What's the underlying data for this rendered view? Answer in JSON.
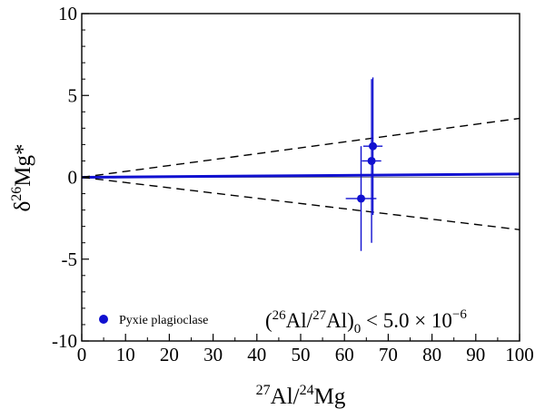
{
  "chart_data": {
    "type": "scatter",
    "title": "",
    "xlabel": {
      "sup": "27",
      "mid": "Al/",
      "sup2": "24",
      "end": "Mg"
    },
    "ylabel": {
      "pre": "δ",
      "sup": "26",
      "end": "Mg*"
    },
    "xlim": [
      0,
      100
    ],
    "ylim": [
      -10,
      10
    ],
    "x_ticks": [
      0,
      10,
      20,
      30,
      40,
      50,
      60,
      70,
      80,
      90,
      100
    ],
    "x_tick_labels": [
      "0",
      "10",
      "20",
      "30",
      "40",
      "50",
      "60",
      "70",
      "80",
      "90",
      "100"
    ],
    "y_ticks": [
      -10,
      -5,
      0,
      5,
      10
    ],
    "y_tick_labels": [
      "-10",
      "-5",
      "0",
      "5",
      "10"
    ],
    "grid": false,
    "legend_position": "bottom-left",
    "series": [
      {
        "name": "Pyxie plagioclase",
        "color": "#1010d0",
        "points": [
          {
            "x": 66.5,
            "y": 1.9,
            "xerr": 2.2,
            "yerr": 4.2
          },
          {
            "x": 66.2,
            "y": 1.0,
            "xerr": 2.2,
            "yerr": 5.0
          },
          {
            "x": 63.8,
            "y": -1.3,
            "xerr": 3.5,
            "yerr": 3.2
          }
        ]
      }
    ],
    "reference_lines": [
      {
        "kind": "horizontal",
        "y": 0,
        "color": "#888888"
      },
      {
        "kind": "fit",
        "x": [
          0,
          100
        ],
        "y": [
          0,
          0.2
        ],
        "color": "#1010d0"
      },
      {
        "kind": "envelope-upper",
        "x": [
          0,
          100
        ],
        "y": [
          0,
          3.6
        ],
        "dash": true,
        "color": "#000000"
      },
      {
        "kind": "envelope-lower",
        "x": [
          0,
          100
        ],
        "y": [
          0,
          -3.2
        ],
        "dash": true,
        "color": "#000000"
      }
    ],
    "annotation": {
      "open": "(",
      "sup1": "26",
      "mid1": "Al/",
      "sup2": "27",
      "mid2": "Al)",
      "sub": "0",
      "rest": " < 5.0 × 10",
      "exp": "−6"
    }
  }
}
